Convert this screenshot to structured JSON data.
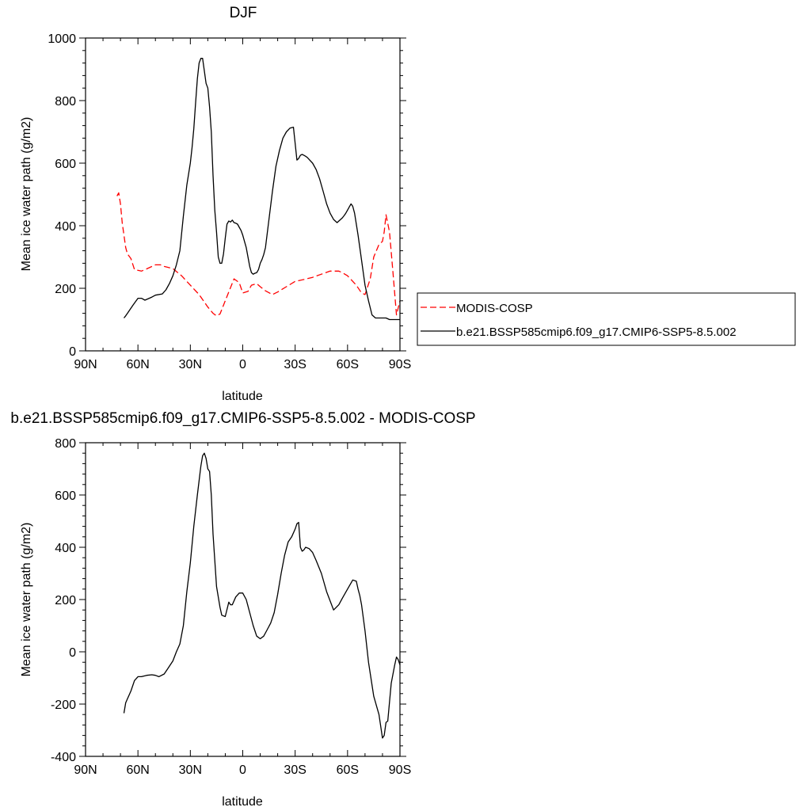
{
  "chart_data": [
    {
      "type": "line",
      "title": "DJF",
      "xlabel": "latitude",
      "ylabel": "Mean ice water path (g/m2)",
      "xlim": [
        90,
        -90
      ],
      "ylim": [
        0,
        1000
      ],
      "xticks": [
        90,
        60,
        30,
        0,
        -30,
        -60,
        -90
      ],
      "xticklabels": [
        "90N",
        "60N",
        "30N",
        "0",
        "30S",
        "60S",
        "90S"
      ],
      "yticks": [
        0,
        200,
        400,
        600,
        800,
        1000
      ],
      "yticklabels": [
        "0",
        "200",
        "400",
        "600",
        "800",
        "1000"
      ],
      "grid": false,
      "legend_position": "outside-right",
      "series": [
        {
          "name": "MODIS-COSP",
          "color": "#ff0000",
          "dash": "dashed",
          "x": [
            72,
            71,
            70,
            69,
            67,
            66,
            64,
            62,
            58,
            55,
            50,
            47,
            45,
            40,
            35,
            30,
            25,
            20,
            17,
            15,
            13,
            10,
            5,
            2,
            0,
            -3,
            -5,
            -8,
            -10,
            -13,
            -17,
            -20,
            -25,
            -30,
            -35,
            -40,
            -45,
            -50,
            -55,
            -57,
            -60,
            -65,
            -68,
            -70,
            -73,
            -75,
            -78,
            -80,
            -81,
            -82,
            -84,
            -86,
            -88,
            -90
          ],
          "y": [
            495,
            505,
            470,
            410,
            330,
            310,
            295,
            260,
            255,
            262,
            275,
            275,
            270,
            263,
            240,
            210,
            180,
            140,
            120,
            112,
            118,
            160,
            230,
            218,
            185,
            190,
            210,
            215,
            205,
            192,
            180,
            188,
            205,
            222,
            228,
            235,
            245,
            255,
            255,
            250,
            240,
            210,
            185,
            180,
            230,
            300,
            340,
            350,
            380,
            435,
            380,
            250,
            115,
            160
          ]
        },
        {
          "name": "b.e21.BSSP585cmip6.f09_g17.CMIP6-SSP5-8.5.002",
          "color": "#000000",
          "dash": "solid",
          "x": [
            68,
            67,
            66,
            63,
            60,
            58,
            56,
            52,
            50,
            46,
            44,
            42,
            40,
            38,
            36,
            34,
            32,
            30,
            29,
            28,
            27,
            26,
            25,
            24,
            23,
            22,
            21,
            20,
            19,
            18,
            17,
            16,
            15,
            14,
            13,
            12,
            11,
            10,
            9,
            8,
            7,
            6,
            5,
            4,
            3,
            2,
            1,
            0,
            -1,
            -2,
            -3,
            -4,
            -5,
            -6,
            -7,
            -8,
            -9,
            -10,
            -11,
            -12,
            -13,
            -15,
            -17,
            -19,
            -21,
            -23,
            -25,
            -27,
            -29,
            -31,
            -32,
            -33,
            -34,
            -35,
            -36,
            -37,
            -38,
            -40,
            -42,
            -44,
            -46,
            -48,
            -50,
            -52,
            -54,
            -56,
            -57,
            -58,
            -59,
            -60,
            -61,
            -62,
            -63,
            -64,
            -65,
            -66,
            -67,
            -68,
            -69,
            -70,
            -72,
            -74,
            -76,
            -78,
            -80,
            -82,
            -84,
            -86,
            -88,
            -90
          ],
          "y": [
            105,
            112,
            120,
            145,
            168,
            168,
            162,
            172,
            178,
            182,
            195,
            215,
            240,
            275,
            320,
            430,
            530,
            600,
            650,
            710,
            790,
            870,
            920,
            935,
            935,
            895,
            855,
            840,
            780,
            700,
            560,
            450,
            380,
            300,
            280,
            280,
            310,
            360,
            405,
            415,
            412,
            418,
            410,
            408,
            405,
            395,
            385,
            370,
            350,
            330,
            300,
            270,
            250,
            245,
            248,
            250,
            260,
            280,
            292,
            308,
            330,
            420,
            510,
            590,
            640,
            680,
            700,
            712,
            715,
            610,
            615,
            625,
            628,
            625,
            622,
            618,
            612,
            600,
            580,
            550,
            510,
            470,
            440,
            420,
            410,
            420,
            425,
            432,
            440,
            450,
            460,
            470,
            462,
            440,
            405,
            370,
            330,
            290,
            250,
            210,
            160,
            115,
            105,
            105,
            105,
            105,
            100,
            100,
            100,
            100
          ]
        }
      ]
    },
    {
      "type": "line",
      "title": "b.e21.BSSP585cmip6.f09_g17.CMIP6-SSP5-8.5.002 - MODIS-COSP",
      "xlabel": "latitude",
      "ylabel": "Mean ice water path (g/m2)",
      "xlim": [
        90,
        -90
      ],
      "ylim": [
        -400,
        800
      ],
      "xticks": [
        90,
        60,
        30,
        0,
        -30,
        -60,
        -90
      ],
      "xticklabels": [
        "90N",
        "60N",
        "30N",
        "0",
        "30S",
        "60S",
        "90S"
      ],
      "yticks": [
        -400,
        -200,
        0,
        200,
        400,
        600,
        800
      ],
      "yticklabels": [
        "-400",
        "-200",
        "0",
        "200",
        "400",
        "600",
        "800"
      ],
      "grid": false,
      "series": [
        {
          "color": "#000000",
          "dash": "solid",
          "x": [
            68,
            67,
            66,
            64,
            62,
            60,
            58,
            55,
            52,
            50,
            48,
            45,
            43,
            40,
            38,
            36,
            34,
            32,
            30,
            28,
            26,
            24,
            23,
            22,
            21,
            20,
            19,
            18,
            17,
            15,
            13,
            12,
            10,
            8,
            7,
            6,
            4,
            2,
            0,
            -2,
            -4,
            -6,
            -8,
            -10,
            -12,
            -14,
            -16,
            -18,
            -20,
            -22,
            -24,
            -26,
            -28,
            -30,
            -31,
            -32,
            -33,
            -34,
            -35,
            -36,
            -38,
            -40,
            -42,
            -45,
            -48,
            -52,
            -55,
            -57,
            -60,
            -63,
            -65,
            -66,
            -67,
            -68,
            -70,
            -72,
            -75,
            -78,
            -80,
            -81,
            -82,
            -83,
            -85,
            -87,
            -88,
            -89,
            -90
          ],
          "y": [
            -235,
            -195,
            -180,
            -150,
            -110,
            -95,
            -95,
            -90,
            -88,
            -90,
            -95,
            -85,
            -65,
            -35,
            0,
            30,
            100,
            230,
            340,
            480,
            600,
            710,
            750,
            760,
            740,
            700,
            690,
            600,
            450,
            250,
            170,
            140,
            135,
            190,
            180,
            180,
            210,
            225,
            225,
            200,
            150,
            100,
            60,
            50,
            60,
            85,
            110,
            150,
            220,
            300,
            370,
            420,
            440,
            470,
            490,
            495,
            400,
            385,
            390,
            400,
            395,
            380,
            350,
            300,
            230,
            160,
            180,
            205,
            240,
            275,
            270,
            240,
            215,
            180,
            80,
            -40,
            -170,
            -240,
            -330,
            -320,
            -270,
            -265,
            -120,
            -50,
            -20,
            -30,
            -50
          ]
        }
      ]
    }
  ]
}
